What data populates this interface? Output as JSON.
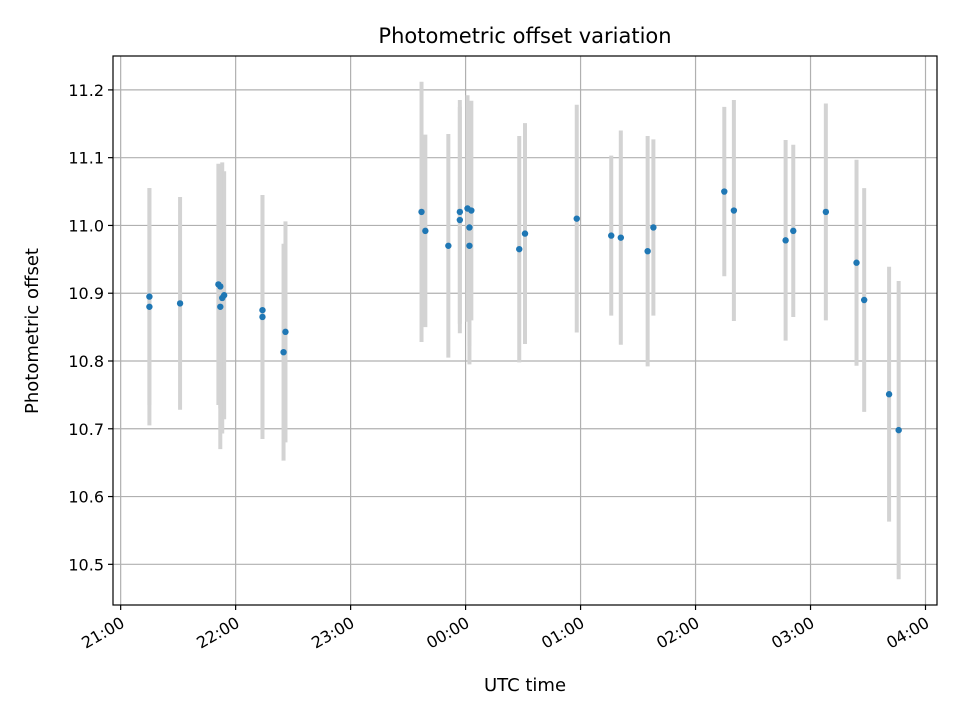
{
  "chart_data": {
    "type": "scatter",
    "title": "Photometric offset variation",
    "xlabel": "UTC time",
    "ylabel": "Photometric offset",
    "x_axis": {
      "type": "time",
      "range": [
        "20:56",
        "04:06"
      ],
      "ticks": [
        "21:00",
        "22:00",
        "23:00",
        "00:00",
        "01:00",
        "02:00",
        "03:00",
        "04:00"
      ]
    },
    "y_axis": {
      "range": [
        10.44,
        11.25
      ],
      "ticks": [
        "10.5",
        "10.6",
        "10.7",
        "10.8",
        "10.9",
        "11.0",
        "11.1",
        "11.2"
      ]
    },
    "grid": true,
    "colors": {
      "points": "#1f77b4",
      "error_bars": "#d3d3d3",
      "grid": "#b0b0b0"
    },
    "series": [
      {
        "points": [
          {
            "x": "21:15",
            "y": 10.88,
            "err": 0.175
          },
          {
            "x": "21:15",
            "y": 10.895,
            "err": 0.16
          },
          {
            "x": "21:31",
            "y": 10.885,
            "err": 0.157
          },
          {
            "x": "21:51",
            "y": 10.913,
            "err": 0.178
          },
          {
            "x": "21:52",
            "y": 10.88,
            "err": 0.21
          },
          {
            "x": "21:52",
            "y": 10.91,
            "err": 0.18
          },
          {
            "x": "21:53",
            "y": 10.893,
            "err": 0.2
          },
          {
            "x": "21:54",
            "y": 10.897,
            "err": 0.183
          },
          {
            "x": "22:14",
            "y": 10.875,
            "err": 0.17
          },
          {
            "x": "22:14",
            "y": 10.865,
            "err": 0.18
          },
          {
            "x": "22:25",
            "y": 10.813,
            "err": 0.16
          },
          {
            "x": "22:26",
            "y": 10.843,
            "err": 0.163
          },
          {
            "x": "23:37",
            "y": 11.02,
            "err": 0.192
          },
          {
            "x": "23:39",
            "y": 10.992,
            "err": 0.142
          },
          {
            "x": "23:51",
            "y": 10.97,
            "err": 0.165
          },
          {
            "x": "23:57",
            "y": 11.008,
            "err": 0.167
          },
          {
            "x": "23:57",
            "y": 11.02,
            "err": 0.165
          },
          {
            "x": "00:01",
            "y": 11.025,
            "err": 0.167
          },
          {
            "x": "00:02",
            "y": 10.97,
            "err": 0.175
          },
          {
            "x": "00:02",
            "y": 10.997,
            "err": 0.175
          },
          {
            "x": "00:03",
            "y": 11.022,
            "err": 0.162
          },
          {
            "x": "00:28",
            "y": 10.965,
            "err": 0.167
          },
          {
            "x": "00:31",
            "y": 10.988,
            "err": 0.163
          },
          {
            "x": "00:58",
            "y": 11.01,
            "err": 0.168
          },
          {
            "x": "01:16",
            "y": 10.985,
            "err": 0.118
          },
          {
            "x": "01:21",
            "y": 10.982,
            "err": 0.158
          },
          {
            "x": "01:35",
            "y": 10.962,
            "err": 0.17
          },
          {
            "x": "01:38",
            "y": 10.997,
            "err": 0.13
          },
          {
            "x": "02:15",
            "y": 11.05,
            "err": 0.125
          },
          {
            "x": "02:20",
            "y": 11.022,
            "err": 0.163
          },
          {
            "x": "02:47",
            "y": 10.978,
            "err": 0.148
          },
          {
            "x": "02:51",
            "y": 10.992,
            "err": 0.127
          },
          {
            "x": "03:08",
            "y": 11.02,
            "err": 0.16
          },
          {
            "x": "03:24",
            "y": 10.945,
            "err": 0.152
          },
          {
            "x": "03:28",
            "y": 10.89,
            "err": 0.165
          },
          {
            "x": "03:41",
            "y": 10.751,
            "err": 0.188
          },
          {
            "x": "03:46",
            "y": 10.698,
            "err": 0.22
          }
        ]
      }
    ]
  }
}
